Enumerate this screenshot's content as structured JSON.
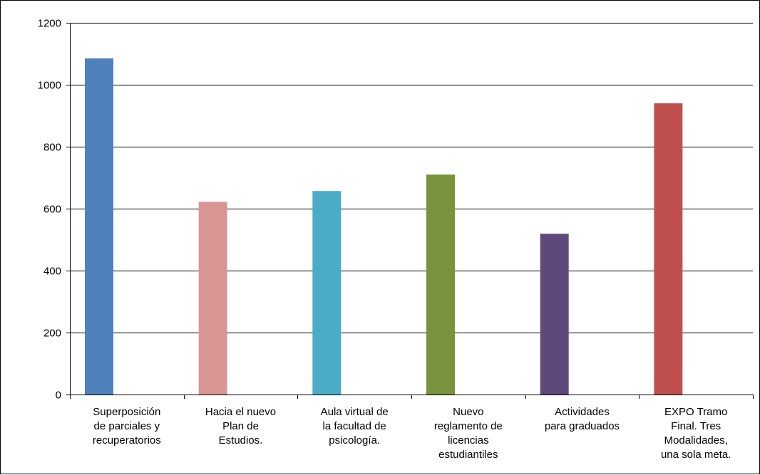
{
  "chart_data": {
    "type": "bar",
    "title": "",
    "xlabel": "",
    "ylabel": "",
    "ylim": [
      0,
      1200
    ],
    "yticks": [
      0,
      200,
      400,
      600,
      800,
      1000,
      1200
    ],
    "grid": true,
    "legend": "none",
    "categories": [
      [
        "Superposición",
        "de parciales y",
        "recuperatorios"
      ],
      [
        "Hacia el nuevo",
        "Plan de",
        "Estudios."
      ],
      [
        "Aula virtual de",
        "la facultad de",
        "psicología."
      ],
      [
        "Nuevo",
        "reglamento de",
        "licencias",
        "estudiantiles"
      ],
      [
        "Actividades",
        "para graduados"
      ],
      [
        "EXPO Tramo",
        "Final. Tres",
        "Modalidades,",
        "una sola meta."
      ]
    ],
    "values": [
      1085,
      622,
      657,
      710,
      519,
      940
    ],
    "colors": [
      "#4f81bd",
      "#d99594",
      "#4bacc6",
      "#77933c",
      "#5f497a",
      "#c0504d"
    ]
  }
}
